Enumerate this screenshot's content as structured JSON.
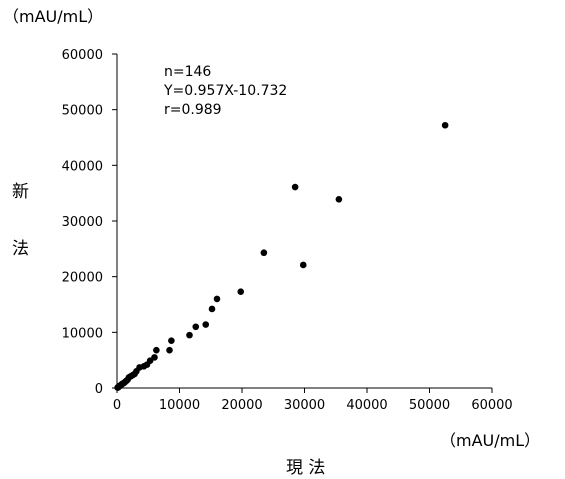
{
  "chart_data": {
    "type": "scatter",
    "title": "",
    "xlabel": "現 法",
    "ylabel": "新 法",
    "xunit": "（mAU/mL）",
    "yunit": "（mAU/mL）",
    "xlim": [
      0,
      60000
    ],
    "ylim": [
      0,
      60000
    ],
    "xticks": [
      "0",
      "10000",
      "20000",
      "30000",
      "40000",
      "50000",
      "60000"
    ],
    "yticks": [
      "0",
      "10000",
      "20000",
      "30000",
      "40000",
      "50000",
      "60000"
    ],
    "annotations": [
      "n=146",
      "Y=0.957X-10.732",
      "r=0.989"
    ],
    "grid": false,
    "legend": "none",
    "points": [
      [
        52500,
        47200
      ],
      [
        35500,
        33900
      ],
      [
        28500,
        36100
      ],
      [
        29800,
        22100
      ],
      [
        23500,
        24300
      ],
      [
        19800,
        17300
      ],
      [
        16000,
        16000
      ],
      [
        15200,
        14200
      ],
      [
        14200,
        11400
      ],
      [
        12600,
        11000
      ],
      [
        11600,
        9500
      ],
      [
        8700,
        8500
      ],
      [
        8400,
        6800
      ],
      [
        6300,
        6800
      ],
      [
        6000,
        5500
      ],
      [
        5300,
        4900
      ],
      [
        4800,
        4200
      ],
      [
        4300,
        3900
      ],
      [
        3600,
        3700
      ],
      [
        3100,
        3000
      ],
      [
        2800,
        2500
      ],
      [
        2500,
        2300
      ],
      [
        2200,
        2100
      ],
      [
        1900,
        1900
      ],
      [
        1700,
        1500
      ],
      [
        1500,
        1300
      ],
      [
        1300,
        1100
      ],
      [
        1100,
        900
      ],
      [
        900,
        800
      ],
      [
        800,
        700
      ],
      [
        700,
        600
      ],
      [
        600,
        500
      ],
      [
        500,
        400
      ],
      [
        400,
        350
      ],
      [
        300,
        300
      ],
      [
        250,
        200
      ],
      [
        200,
        150
      ],
      [
        150,
        100
      ],
      [
        100,
        80
      ]
    ]
  }
}
